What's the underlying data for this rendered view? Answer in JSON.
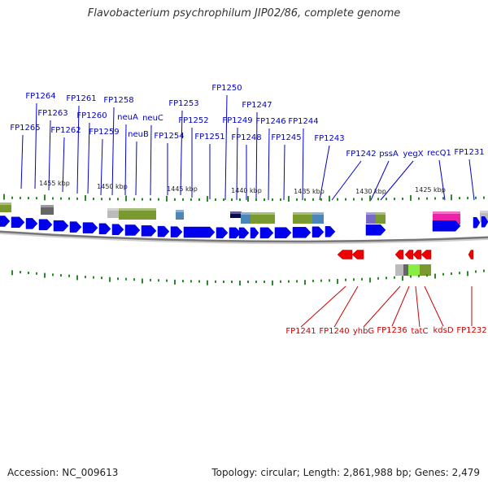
{
  "title": "Flavobacterium psychrophilum JIP02/86, complete genome",
  "accession": "Accession: NC_009613",
  "summary": "Topology: circular; Length: 2,861,988 bp; Genes: 2,479",
  "colors": {
    "forward_gene": "#0000ee",
    "reverse_gene": "#ee0000",
    "forward_label": "#0000cc",
    "reverse_label": "#cc0000",
    "tick": "#2a8a2a",
    "backbone": "#777777"
  },
  "scale_ticks": [
    {
      "label": "1455 kbp"
    },
    {
      "label": "1450 kbp"
    },
    {
      "label": "1445 kbp"
    },
    {
      "label": "1440 kbp"
    },
    {
      "label": "1435 kbp"
    },
    {
      "label": "1430 kbp"
    },
    {
      "label": "1425 kbp"
    }
  ],
  "forward_labels": [
    "FP1265",
    "FP1264",
    "FP1263",
    "FP1262",
    "FP1261",
    "FP1260",
    "FP1259",
    "FP1258",
    "neuA",
    "neuB",
    "neuC",
    "FP1254",
    "FP1253",
    "FP1252",
    "FP1251",
    "FP1250",
    "FP1249",
    "FP1248",
    "FP1247",
    "FP1246",
    "FP1245",
    "FP1244",
    "FP1243",
    "FP1242",
    "pssA",
    "yegX",
    "recQ1",
    "FP1231"
  ],
  "reverse_labels": [
    "FP1241",
    "FP1240",
    "yhbG",
    "FP1236",
    "tatC",
    "kdsD",
    "FP1232"
  ]
}
